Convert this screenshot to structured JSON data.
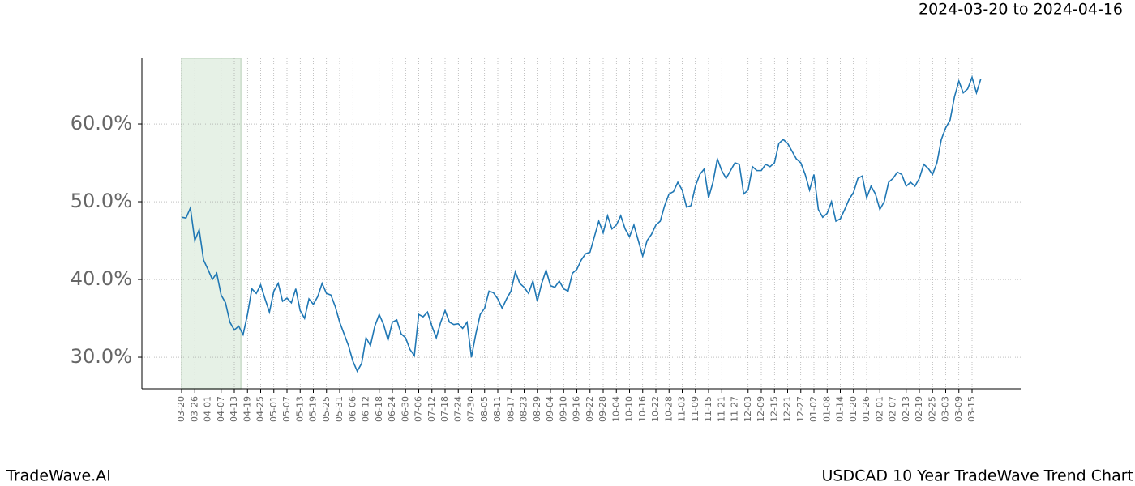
{
  "chart_data": {
    "type": "line",
    "date_range": "2024-03-20 to 2024-04-16",
    "brand": "TradeWave.AI",
    "title": "USDCAD 10 Year TradeWave Trend Chart",
    "categories": [
      "03-20",
      null,
      null,
      "03-26",
      null,
      null,
      "04-01",
      null,
      null,
      "04-07",
      null,
      null,
      "04-13",
      null,
      null,
      "04-19",
      null,
      null,
      "04-25",
      null,
      null,
      "05-01",
      null,
      null,
      "05-07",
      null,
      null,
      "05-13",
      null,
      null,
      "05-19",
      null,
      null,
      "05-25",
      null,
      null,
      "05-31",
      null,
      null,
      "06-06",
      null,
      null,
      "06-12",
      null,
      null,
      "06-18",
      null,
      null,
      "06-24",
      null,
      null,
      "06-30",
      null,
      null,
      "07-06",
      null,
      null,
      "07-12",
      null,
      null,
      "07-18",
      null,
      null,
      "07-24",
      null,
      null,
      "07-30",
      null,
      null,
      "08-05",
      null,
      null,
      "08-11",
      null,
      null,
      "08-17",
      null,
      null,
      "08-23",
      null,
      null,
      "08-29",
      null,
      null,
      "09-04",
      null,
      null,
      "09-10",
      null,
      null,
      "09-16",
      null,
      null,
      "09-22",
      null,
      null,
      "09-28",
      null,
      null,
      "10-04",
      null,
      null,
      "10-10",
      null,
      null,
      "10-16",
      null,
      null,
      "10-22",
      null,
      null,
      "10-28",
      null,
      null,
      "11-03",
      null,
      null,
      "11-09",
      null,
      null,
      "11-15",
      null,
      null,
      "11-21",
      null,
      null,
      "11-27",
      null,
      null,
      "12-03",
      null,
      null,
      "12-09",
      null,
      null,
      "12-15",
      null,
      null,
      "12-21",
      null,
      null,
      "12-27",
      null,
      null,
      "01-02",
      null,
      null,
      "01-08",
      null,
      null,
      "01-14",
      null,
      null,
      "01-20",
      null,
      null,
      "01-26",
      null,
      null,
      "02-01",
      null,
      null,
      "02-07",
      null,
      null,
      "02-13",
      null,
      null,
      "02-19",
      null,
      null,
      "02-25",
      null,
      null,
      "03-03",
      null,
      null,
      "03-09",
      null,
      null,
      "03-15",
      null,
      null
    ],
    "series": [
      {
        "color": "#1f77b4",
        "values": [
          48.0,
          47.9,
          49.2,
          45.0,
          46.4,
          42.5,
          41.3,
          40.0,
          40.8,
          38.0,
          37.0,
          34.5,
          33.5,
          34.0,
          32.9,
          35.5,
          38.8,
          38.2,
          39.3,
          37.5,
          35.8,
          38.5,
          39.5,
          37.2,
          37.6,
          37.0,
          38.8,
          36.0,
          35.0,
          37.5,
          36.8,
          37.8,
          39.5,
          38.2,
          38.0,
          36.5,
          34.5,
          33.0,
          31.5,
          29.5,
          28.2,
          29.2,
          32.5,
          31.5,
          34.0,
          35.5,
          34.2,
          32.2,
          34.5,
          34.8,
          33.0,
          32.5,
          31.0,
          30.2,
          35.5,
          35.2,
          35.8,
          34.0,
          32.5,
          34.5,
          36.0,
          34.5,
          34.2,
          34.3,
          33.7,
          34.5,
          30.0,
          33.0,
          35.5,
          36.3,
          38.5,
          38.3,
          37.5,
          36.3,
          37.5,
          38.5,
          41.0,
          39.5,
          39.0,
          38.2,
          39.8,
          37.2,
          39.5,
          41.2,
          39.2,
          39.0,
          39.8,
          38.8,
          38.5,
          40.8,
          41.3,
          42.5,
          43.3,
          43.5,
          45.5,
          47.5,
          46.0,
          48.2,
          46.5,
          47.0,
          48.2,
          46.5,
          45.5,
          47.0,
          45.0,
          43.0,
          45.0,
          45.8,
          47.0,
          47.5,
          49.5,
          51.0,
          51.3,
          52.5,
          51.5,
          49.3,
          49.5,
          52.0,
          53.5,
          54.2,
          50.5,
          52.5,
          55.5,
          54.0,
          53.0,
          54.0,
          55.0,
          54.8,
          51.0,
          51.5,
          54.5,
          54.0,
          54.0,
          54.8,
          54.5,
          55.0,
          57.5,
          58.0,
          57.5,
          56.5,
          55.5,
          55.0,
          53.5,
          51.5,
          53.5,
          49.0,
          48.0,
          48.5,
          50.0,
          47.5,
          47.8,
          49.0,
          50.3,
          51.2,
          53.0,
          53.3,
          50.5,
          52.0,
          51.0,
          49.0,
          50.0,
          52.5,
          53.0,
          53.8,
          53.5,
          52.0,
          52.5,
          52.0,
          53.0,
          54.8,
          54.3,
          53.5,
          55.0,
          58.0,
          59.5,
          60.5,
          63.5,
          65.5,
          64.0,
          64.5,
          66.0,
          64.0,
          65.8
        ]
      }
    ],
    "ylim": [
      25.94,
      68.44
    ],
    "yticks": [
      {
        "value": 30,
        "label": "30.0%"
      },
      {
        "value": 40,
        "label": "40.0%"
      },
      {
        "value": 50,
        "label": "50.0%"
      },
      {
        "value": 60,
        "label": "60.0%"
      }
    ],
    "grid": true
  }
}
